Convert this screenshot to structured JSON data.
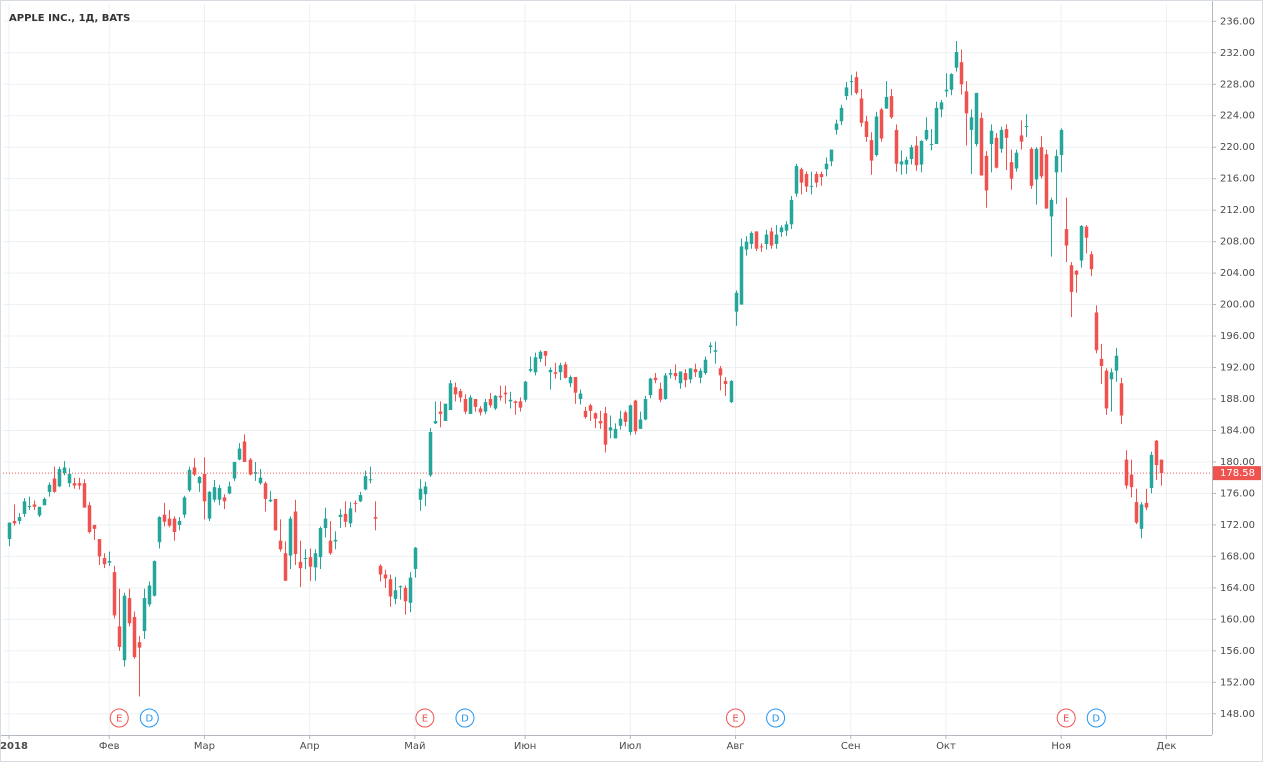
{
  "chart_data": {
    "type": "candlestick",
    "title": "APPLE INC., 1Д, BATS",
    "up_color": "#26a69a",
    "down_color": "#ef5350",
    "grid": true,
    "xlim": [
      -1.2,
      240.1
    ],
    "xticks": [
      {
        "value": 0,
        "label": "2018"
      },
      {
        "value": 20,
        "label": "Фев"
      },
      {
        "value": 39,
        "label": "Мар"
      },
      {
        "value": 60,
        "label": "Апр"
      },
      {
        "value": 81,
        "label": "Май"
      },
      {
        "value": 103,
        "label": "Июн"
      },
      {
        "value": 124,
        "label": "Июл"
      },
      {
        "value": 145,
        "label": "Авг"
      },
      {
        "value": 168,
        "label": "Сен"
      },
      {
        "value": 187,
        "label": "Окт"
      },
      {
        "value": 210,
        "label": "Ноя"
      },
      {
        "value": 231,
        "label": "Дек"
      }
    ],
    "ylim": [
      145.3,
      238.2
    ],
    "yticks": [
      {
        "value": 148,
        "label": "148.00"
      },
      {
        "value": 152,
        "label": "152.00"
      },
      {
        "value": 156,
        "label": "156.00"
      },
      {
        "value": 160,
        "label": "160.00"
      },
      {
        "value": 164,
        "label": "164.00"
      },
      {
        "value": 168,
        "label": "168.00"
      },
      {
        "value": 172,
        "label": "172.00"
      },
      {
        "value": 176,
        "label": "176.00"
      },
      {
        "value": 180,
        "label": "180.00"
      },
      {
        "value": 184,
        "label": "184.00"
      },
      {
        "value": 188,
        "label": "188.00"
      },
      {
        "value": 192,
        "label": "192.00"
      },
      {
        "value": 196,
        "label": "196.00"
      },
      {
        "value": 200,
        "label": "200.00"
      },
      {
        "value": 204,
        "label": "204.00"
      },
      {
        "value": 208,
        "label": "208.00"
      },
      {
        "value": 212,
        "label": "212.00"
      },
      {
        "value": 216,
        "label": "216.00"
      },
      {
        "value": 220,
        "label": "220.00"
      },
      {
        "value": 224,
        "label": "224.00"
      },
      {
        "value": 228,
        "label": "228.00"
      },
      {
        "value": 232,
        "label": "232.00"
      },
      {
        "value": 236,
        "label": "236.00"
      }
    ],
    "last_price": 178.58,
    "events": [
      {
        "label": "E",
        "x": 22,
        "color": "#ef5350"
      },
      {
        "label": "D",
        "x": 28,
        "color": "#2196f3"
      },
      {
        "label": "E",
        "x": 83,
        "color": "#ef5350"
      },
      {
        "label": "D",
        "x": 91,
        "color": "#2196f3"
      },
      {
        "label": "E",
        "x": 145,
        "color": "#ef5350"
      },
      {
        "label": "D",
        "x": 153,
        "color": "#2196f3"
      },
      {
        "label": "E",
        "x": 211,
        "color": "#ef5350"
      },
      {
        "label": "D",
        "x": 217,
        "color": "#2196f3"
      }
    ],
    "open": [
      170.2,
      172.5,
      172.5,
      173.4,
      174.4,
      174.6,
      173.2,
      174.5,
      176.2,
      177.9,
      176.9,
      178.6,
      177.3,
      177.3,
      177.3,
      177.3,
      174.5,
      172.0,
      170.2,
      167.8,
      167.2,
      166.0,
      159.1,
      154.8,
      162.7,
      160.3,
      157.1,
      158.5,
      161.9,
      163.0,
      169.8,
      173.3,
      172.8,
      172.8,
      172.0,
      173.3,
      176.4,
      179.3,
      177.3,
      178.5,
      172.8,
      175.2,
      175.2,
      175.5,
      176.0,
      177.9,
      180.3,
      182.6,
      180.3,
      178.5,
      177.3,
      177.3,
      175.0,
      175.3,
      170.0,
      168.4,
      168.1,
      173.7,
      167.3,
      167.8,
      167.9,
      166.6,
      167.9,
      171.6,
      170.0,
      169.9,
      173.0,
      173.4,
      172.2,
      174.8,
      175.0,
      176.5,
      177.8,
      173.0,
      166.8,
      165.7,
      165.1,
      162.6,
      164.1,
      164.0,
      162.1,
      166.4,
      175.2,
      175.9,
      178.3,
      184.9,
      186.4,
      185.2,
      186.6,
      189.5,
      189.0,
      188.0,
      186.1,
      188.0,
      186.8,
      186.4,
      188.0,
      186.8,
      188.4,
      188.8,
      187.7,
      187.7,
      187.7,
      187.9,
      191.6,
      191.4,
      193.1,
      194.1,
      191.4,
      191.4,
      191.4,
      192.4,
      190.0,
      190.8,
      188.0,
      186.5,
      187.2,
      186.2,
      185.2,
      186.2,
      184.0,
      183.0,
      184.6,
      186.3,
      183.8,
      187.8,
      184.2,
      185.4,
      188.5,
      190.7,
      189.3,
      188.0,
      191.1,
      191.3,
      190.0,
      191.3,
      190.5,
      191.8,
      190.7,
      191.3,
      194.6,
      194.0,
      191.9,
      190.3,
      187.6,
      199.1,
      200.0,
      207.0,
      207.7,
      209.3,
      207.4,
      207.7,
      209.3,
      207.7,
      209.2,
      209.4,
      210.2,
      214.1,
      217.2,
      216.6,
      215.1,
      216.6,
      216.6,
      217.2,
      218.2,
      222.2,
      223.3,
      226.5,
      228.4,
      228.9,
      226.2,
      223.3,
      220.9,
      219.0,
      224.8,
      224.9,
      226.5,
      222.2,
      217.8,
      217.8,
      218.5,
      220.2,
      217.8,
      221.0,
      220.4,
      220.4,
      224.8,
      227.1,
      227.3,
      230.1,
      230.8,
      227.1,
      222.2,
      220.4,
      223.7,
      218.9,
      220.4,
      221.2,
      219.8,
      222.3,
      218.1,
      217.3,
      221.5,
      222.7,
      219.8,
      215.9,
      220.0,
      219.1,
      211.2,
      216.8,
      219.0,
      209.6,
      205.0,
      204.3,
      205.6,
      209.9,
      206.4,
      199.0,
      193.1,
      191.6,
      190.5,
      191.6,
      190.0,
      180.3,
      178.4,
      174.9,
      171.5,
      174.8,
      176.7,
      182.7,
      180.3
    ],
    "high": [
      172.3,
      174.6,
      173.5,
      175.4,
      175.6,
      175.1,
      174.3,
      175.5,
      177.4,
      179.4,
      179.4,
      180.1,
      179.2,
      178.0,
      178.0,
      177.8,
      174.9,
      172.0,
      170.2,
      168.4,
      168.6,
      166.8,
      163.9,
      163.4,
      163.9,
      161.0,
      157.9,
      163.9,
      164.8,
      167.5,
      173.1,
      174.8,
      173.9,
      173.1,
      173.0,
      175.7,
      179.4,
      180.5,
      178.2,
      180.6,
      176.3,
      177.7,
      177.1,
      175.9,
      177.5,
      180.0,
      182.4,
      183.5,
      180.5,
      180.0,
      179.1,
      177.5,
      176.3,
      175.1,
      172.7,
      169.9,
      173.1,
      175.2,
      170.0,
      168.9,
      169.0,
      168.9,
      171.8,
      174.2,
      172.5,
      171.2,
      174.0,
      175.0,
      174.9,
      175.1,
      176.2,
      178.9,
      179.4,
      175.0,
      167.0,
      166.3,
      165.7,
      165.4,
      164.3,
      164.3,
      166.0,
      169.2,
      177.8,
      177.5,
      184.3,
      187.7,
      187.7,
      187.4,
      190.4,
      190.1,
      189.3,
      188.6,
      188.5,
      188.0,
      187.1,
      188.0,
      188.8,
      188.5,
      189.7,
      189.7,
      188.9,
      187.8,
      188.2,
      190.3,
      193.4,
      193.9,
      194.2,
      194.1,
      192.0,
      192.6,
      192.6,
      192.7,
      191.0,
      190.8,
      189.2,
      187.0,
      187.4,
      186.3,
      186.5,
      187.0,
      185.9,
      184.9,
      186.5,
      186.5,
      187.3,
      187.9,
      186.4,
      188.4,
      190.7,
      191.3,
      190.1,
      191.3,
      191.8,
      192.4,
      191.5,
      191.8,
      191.9,
      192.5,
      191.9,
      193.4,
      195.2,
      195.3,
      192.2,
      190.8,
      190.4,
      201.8,
      208.4,
      208.7,
      209.3,
      209.3,
      207.8,
      209.5,
      209.8,
      210.1,
      210.1,
      210.6,
      213.8,
      217.9,
      217.4,
      216.9,
      216.9,
      216.9,
      216.9,
      218.7,
      219.7,
      223.5,
      225.4,
      228.3,
      229.2,
      229.6,
      227.4,
      224.0,
      221.9,
      224.5,
      225.0,
      228.4,
      227.4,
      222.9,
      219.6,
      218.8,
      220.3,
      221.4,
      220.9,
      223.8,
      222.3,
      225.8,
      226.0,
      229.4,
      229.4,
      233.5,
      232.4,
      228.4,
      224.8,
      226.9,
      224.4,
      219.5,
      222.9,
      221.8,
      222.6,
      222.9,
      219.7,
      219.7,
      223.4,
      224.2,
      220.0,
      220.0,
      221.4,
      219.7,
      213.6,
      219.7,
      222.4,
      213.6,
      205.4,
      204.4,
      210.1,
      210.1,
      206.8,
      199.9,
      195.0,
      191.9,
      191.9,
      194.5,
      190.7,
      181.5,
      180.3,
      176.6,
      174.9,
      176.6,
      181.3,
      182.8,
      180.3
    ],
    "low": [
      169.3,
      171.9,
      172.1,
      173.0,
      173.9,
      173.9,
      173.0,
      174.5,
      175.6,
      176.1,
      176.8,
      178.3,
      176.8,
      176.6,
      176.5,
      174.2,
      170.9,
      170.1,
      166.9,
      166.5,
      166.8,
      160.1,
      156.0,
      154.0,
      159.1,
      155.0,
      150.2,
      157.5,
      161.6,
      162.9,
      169.0,
      171.8,
      171.7,
      170.0,
      171.3,
      172.9,
      176.2,
      178.2,
      176.2,
      172.7,
      172.5,
      174.9,
      174.5,
      174.0,
      175.9,
      177.6,
      180.2,
      180.2,
      178.3,
      177.6,
      177.1,
      173.7,
      174.9,
      171.3,
      168.6,
      164.9,
      166.4,
      166.9,
      164.1,
      166.4,
      164.9,
      164.9,
      166.4,
      170.4,
      168.2,
      168.9,
      171.6,
      171.7,
      171.7,
      173.6,
      174.9,
      176.4,
      177.3,
      171.3,
      164.8,
      164.0,
      161.6,
      161.9,
      162.5,
      160.6,
      160.9,
      165.3,
      173.8,
      174.4,
      178.1,
      184.8,
      184.4,
      185.2,
      186.6,
      187.7,
      187.6,
      186.1,
      186.1,
      186.4,
      185.9,
      186.1,
      186.9,
      186.6,
      187.8,
      187.4,
      186.8,
      186.0,
      186.4,
      187.6,
      191.4,
      191.0,
      192.7,
      192.2,
      189.2,
      190.6,
      190.4,
      190.6,
      189.5,
      187.4,
      187.3,
      185.5,
      185.2,
      184.3,
      184.2,
      181.2,
      183.0,
      183.0,
      184.1,
      184.5,
      183.4,
      183.5,
      184.3,
      185.3,
      188.1,
      190.0,
      187.6,
      187.9,
      190.6,
      190.4,
      189.3,
      189.5,
      190.0,
      190.8,
      190.0,
      191.1,
      193.8,
      192.5,
      189.1,
      188.4,
      187.5,
      197.3,
      200.0,
      206.2,
      207.1,
      206.8,
      206.7,
      207.0,
      207.1,
      207.1,
      208.6,
      208.7,
      209.6,
      213.7,
      214.0,
      214.3,
      214.0,
      214.9,
      215.1,
      216.3,
      217.6,
      221.6,
      222.8,
      226.0,
      226.6,
      226.7,
      222.6,
      220.7,
      216.5,
      218.8,
      220.7,
      224.9,
      223.6,
      216.9,
      216.5,
      216.6,
      217.8,
      217.0,
      216.8,
      220.8,
      219.6,
      220.4,
      223.8,
      226.4,
      226.6,
      229.6,
      226.7,
      220.2,
      216.6,
      220.1,
      216.4,
      212.3,
      216.8,
      217.3,
      219.3,
      217.1,
      214.6,
      216.9,
      219.7,
      221.3,
      214.7,
      212.7,
      216.0,
      212.2,
      206.1,
      212.8,
      216.8,
      205.4,
      198.4,
      201.5,
      204.7,
      206.5,
      203.6,
      193.8,
      189.9,
      186.0,
      186.4,
      190.2,
      184.8,
      176.6,
      175.5,
      172.1,
      170.3,
      173.9,
      176.0,
      177.7,
      177.0
    ],
    "close": [
      172.3,
      172.2,
      173.0,
      175.0,
      174.4,
      174.3,
      174.3,
      175.3,
      177.1,
      176.2,
      179.1,
      179.3,
      178.5,
      177.0,
      177.0,
      174.2,
      171.1,
      171.5,
      168.0,
      167.0,
      167.4,
      160.5,
      156.5,
      163.0,
      159.5,
      155.2,
      156.4,
      162.7,
      164.3,
      167.4,
      173.0,
      172.4,
      171.9,
      171.1,
      172.5,
      175.5,
      179.0,
      178.4,
      178.1,
      175.0,
      176.2,
      176.8,
      176.7,
      175.0,
      176.9,
      180.0,
      181.7,
      180.0,
      178.4,
      178.7,
      178.0,
      175.3,
      175.2,
      171.3,
      168.9,
      164.9,
      172.8,
      168.3,
      166.5,
      167.8,
      166.7,
      168.4,
      171.6,
      172.8,
      168.4,
      170.1,
      173.3,
      172.4,
      174.1,
      174.7,
      175.8,
      178.2,
      177.8,
      172.8,
      165.7,
      165.2,
      162.9,
      163.7,
      164.2,
      162.3,
      165.3,
      169.1,
      176.6,
      176.9,
      183.8,
      185.2,
      186.1,
      187.4,
      190.0,
      188.6,
      188.2,
      186.4,
      188.2,
      187.0,
      186.3,
      187.6,
      187.2,
      188.4,
      188.2,
      188.6,
      187.9,
      187.5,
      186.9,
      190.2,
      191.8,
      193.3,
      194.0,
      193.5,
      191.7,
      191.2,
      192.3,
      190.7,
      190.8,
      188.8,
      188.7,
      185.7,
      186.5,
      185.5,
      184.9,
      182.2,
      184.4,
      184.2,
      185.5,
      185.1,
      187.2,
      183.9,
      185.4,
      188.0,
      190.6,
      190.4,
      187.9,
      191.0,
      191.3,
      190.9,
      191.5,
      190.4,
      191.9,
      191.4,
      191.6,
      193.0,
      194.8,
      194.2,
      191.0,
      189.9,
      190.3,
      201.5,
      207.4,
      208.0,
      209.1,
      207.1,
      207.3,
      208.9,
      207.5,
      208.9,
      209.8,
      210.2,
      213.3,
      217.6,
      215.5,
      215.0,
      215.1,
      215.5,
      216.2,
      217.9,
      219.7,
      223.0,
      225.0,
      227.6,
      228.4,
      226.9,
      223.1,
      221.3,
      218.3,
      223.9,
      221.1,
      226.4,
      223.8,
      217.9,
      218.2,
      218.4,
      220.0,
      217.7,
      220.8,
      222.2,
      220.4,
      225.0,
      225.7,
      227.3,
      229.3,
      232.1,
      228.0,
      224.3,
      223.8,
      226.9,
      216.4,
      214.5,
      222.1,
      217.4,
      222.2,
      221.2,
      216.0,
      219.3,
      220.7,
      222.7,
      215.1,
      219.8,
      216.3,
      212.2,
      213.3,
      218.9,
      222.2,
      207.5,
      201.6,
      203.8,
      210.0,
      208.5,
      204.5,
      194.2,
      192.2,
      186.8,
      191.4,
      193.5,
      185.9,
      177.0,
      176.8,
      172.3,
      174.6,
      174.2,
      180.9,
      179.6,
      178.58
    ]
  }
}
